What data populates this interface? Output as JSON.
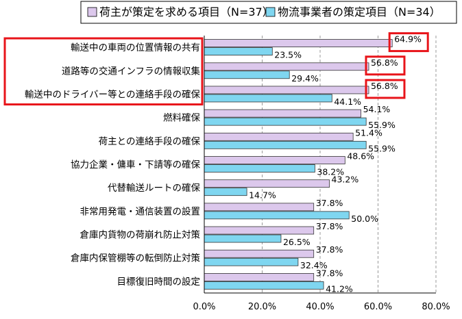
{
  "chart_data": {
    "type": "bar",
    "orientation": "horizontal",
    "categories": [
      "輸送中の車両の位置情報の共有",
      "道路等の交通インフラの情報収集",
      "輸送中のドライバー等との連絡手段の確保",
      "燃料確保",
      "荷主との連絡手段の確保",
      "協力企業・傭車・下請等の確保",
      "代替輸送ルートの確保",
      "非常用発電・通信装置の設置",
      "倉庫内貨物の荷崩れ防止対策",
      "倉庫内保管棚等の転倒防止対策",
      "目標復旧時間の設定"
    ],
    "series": [
      {
        "name": "荷主が策定を求める項目（N=37）",
        "color": "#dcc8ec",
        "values": [
          64.9,
          56.8,
          56.8,
          54.1,
          51.4,
          48.6,
          43.2,
          37.8,
          37.8,
          37.8,
          37.8
        ],
        "labels": [
          "64.9%",
          "56.8%",
          "56.8%",
          "54.1%",
          "51.4%",
          "48.6%",
          "43.2%",
          "37.8%",
          "37.8%",
          "37.8%",
          "37.8%"
        ]
      },
      {
        "name": "物流事業者の策定項目（N=34）",
        "color": "#7fd6f0",
        "values": [
          23.5,
          29.4,
          44.1,
          55.9,
          55.9,
          38.2,
          14.7,
          50.0,
          26.5,
          32.4,
          41.2
        ],
        "labels": [
          "23.5%",
          "29.4%",
          "44.1%",
          "55.9%",
          "55.9%",
          "38.2%",
          "14.7%",
          "50.0%",
          "26.5%",
          "32.4%",
          "41.2%"
        ]
      }
    ],
    "xlim": [
      0,
      80
    ],
    "xticks": [
      "0.0%",
      "20.0%",
      "40.0%",
      "60.0%",
      "80.0%"
    ],
    "grid": "vertical-dashed",
    "legend_position": "top",
    "highlight_color": "#e8141a",
    "highlighted_categories": [
      0,
      1,
      2
    ],
    "highlighted_values": [
      0,
      1,
      2
    ]
  }
}
